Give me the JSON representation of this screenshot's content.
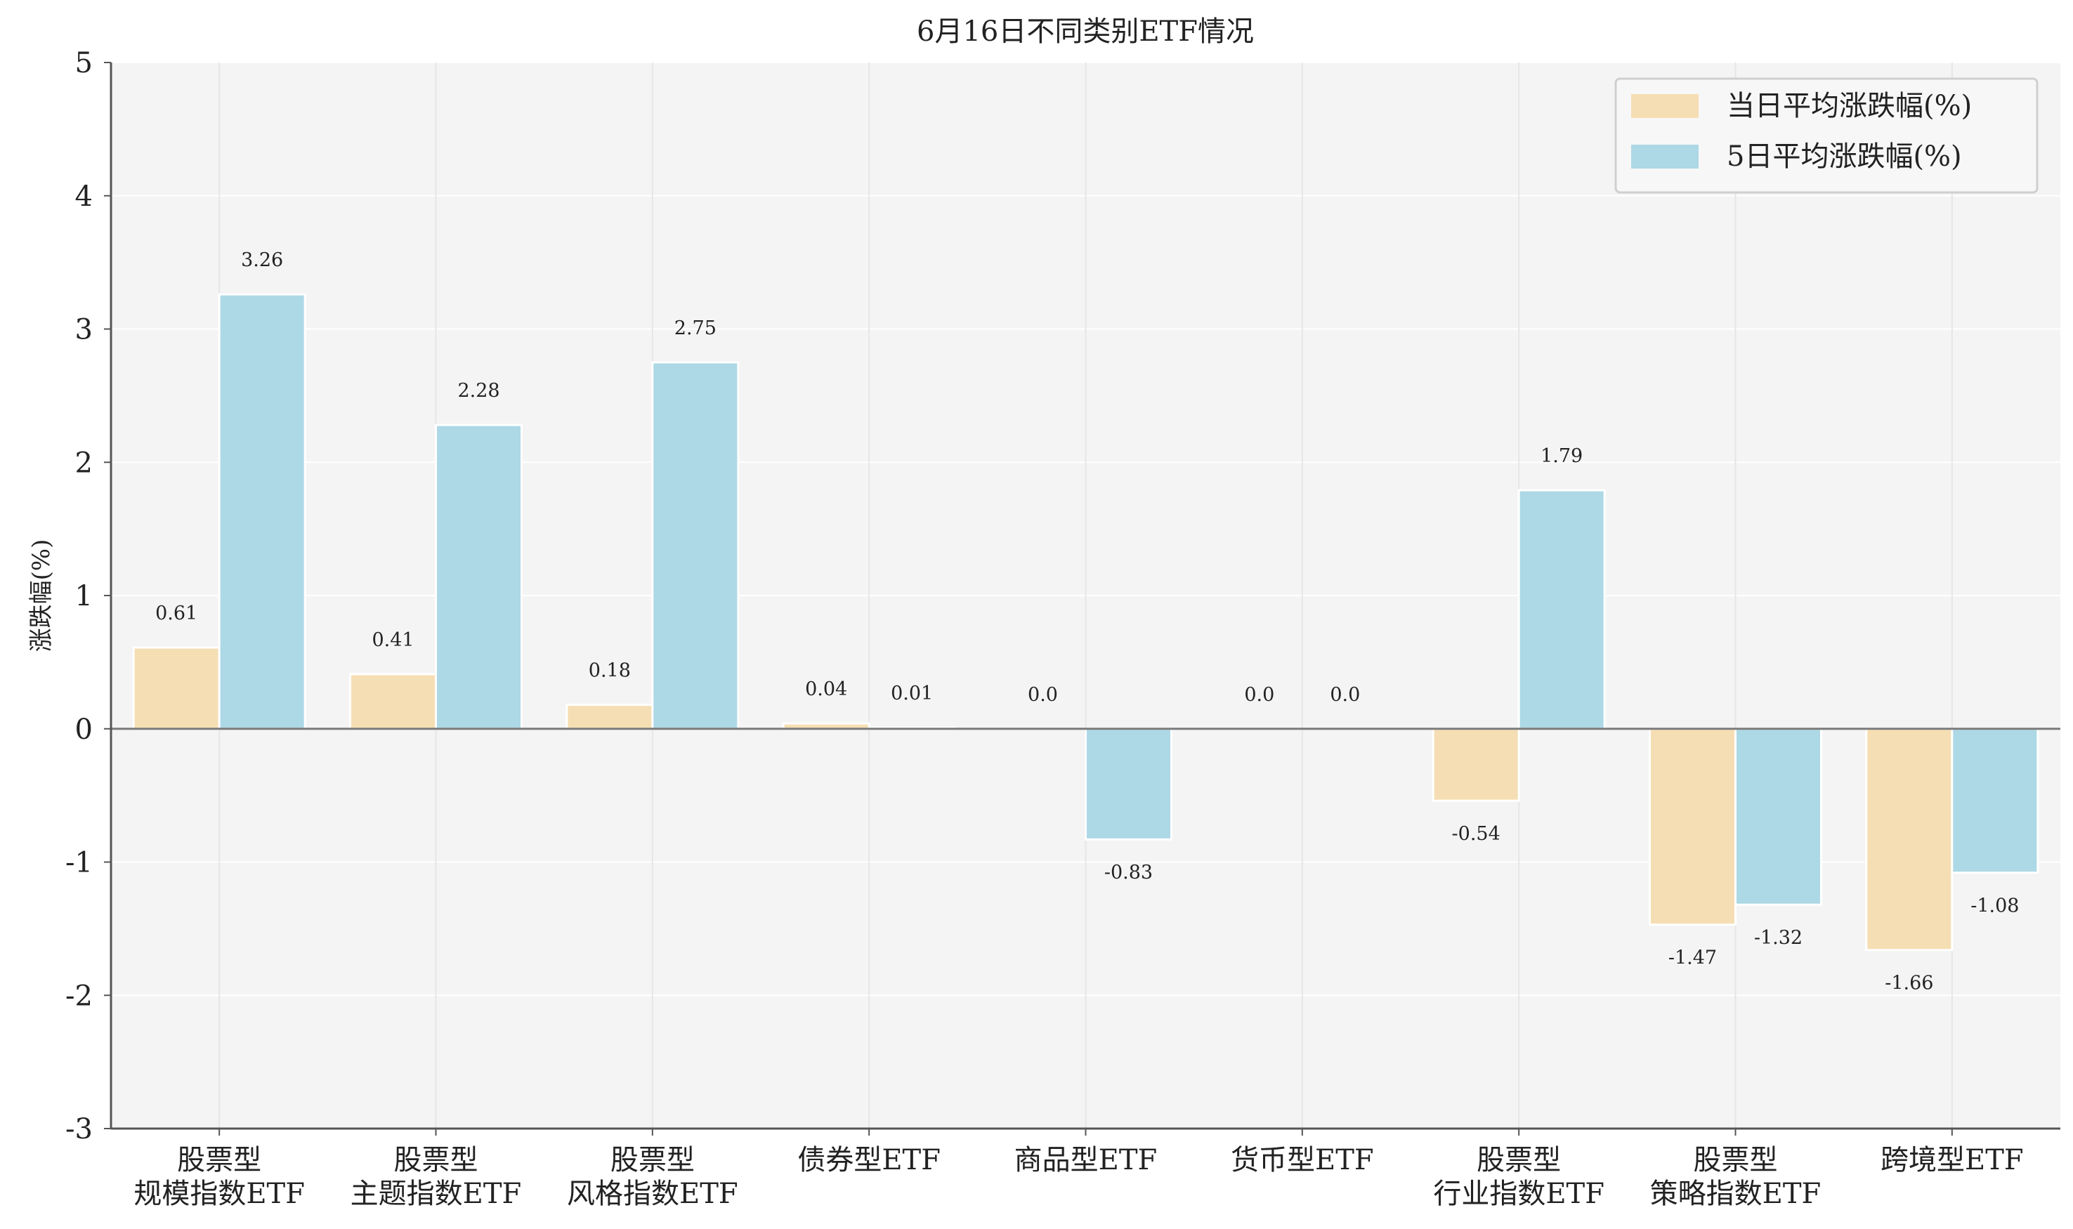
{
  "chart_data": {
    "type": "bar",
    "title": "6月16日不同类别ETF情况",
    "xlabel": "",
    "ylabel": "涨跌幅(%)",
    "ylim": [
      -3,
      5
    ],
    "yticks": [
      -3,
      -2,
      -1,
      0,
      1,
      2,
      3,
      4,
      5
    ],
    "grid": true,
    "legend_position": "top-right",
    "categories": [
      [
        "股票型",
        "规模指数ETF"
      ],
      [
        "股票型",
        "主题指数ETF"
      ],
      [
        "股票型",
        "风格指数ETF"
      ],
      [
        "债券型ETF"
      ],
      [
        "商品型ETF"
      ],
      [
        "货币型ETF"
      ],
      [
        "股票型",
        "行业指数ETF"
      ],
      [
        "股票型",
        "策略指数ETF"
      ],
      [
        "跨境型ETF"
      ]
    ],
    "series": [
      {
        "name": "当日平均涨跌幅(%)",
        "color": "#F5DEB3",
        "values": [
          0.61,
          0.41,
          0.18,
          0.04,
          0.0,
          0.0,
          -0.54,
          -1.47,
          -1.66
        ],
        "labels": [
          "0.61",
          "0.41",
          "0.18",
          "0.04",
          "0.0",
          "0.0",
          "-0.54",
          "-1.47",
          "-1.66"
        ]
      },
      {
        "name": "5日平均涨跌幅(%)",
        "color": "#ADD8E6",
        "values": [
          3.26,
          2.28,
          2.75,
          0.01,
          -0.83,
          0.0,
          1.79,
          -1.32,
          -1.08
        ],
        "labels": [
          "3.26",
          "2.28",
          "2.75",
          "0.01",
          "-0.83",
          "0.0",
          "1.79",
          "-1.32",
          "-1.08"
        ]
      }
    ]
  }
}
